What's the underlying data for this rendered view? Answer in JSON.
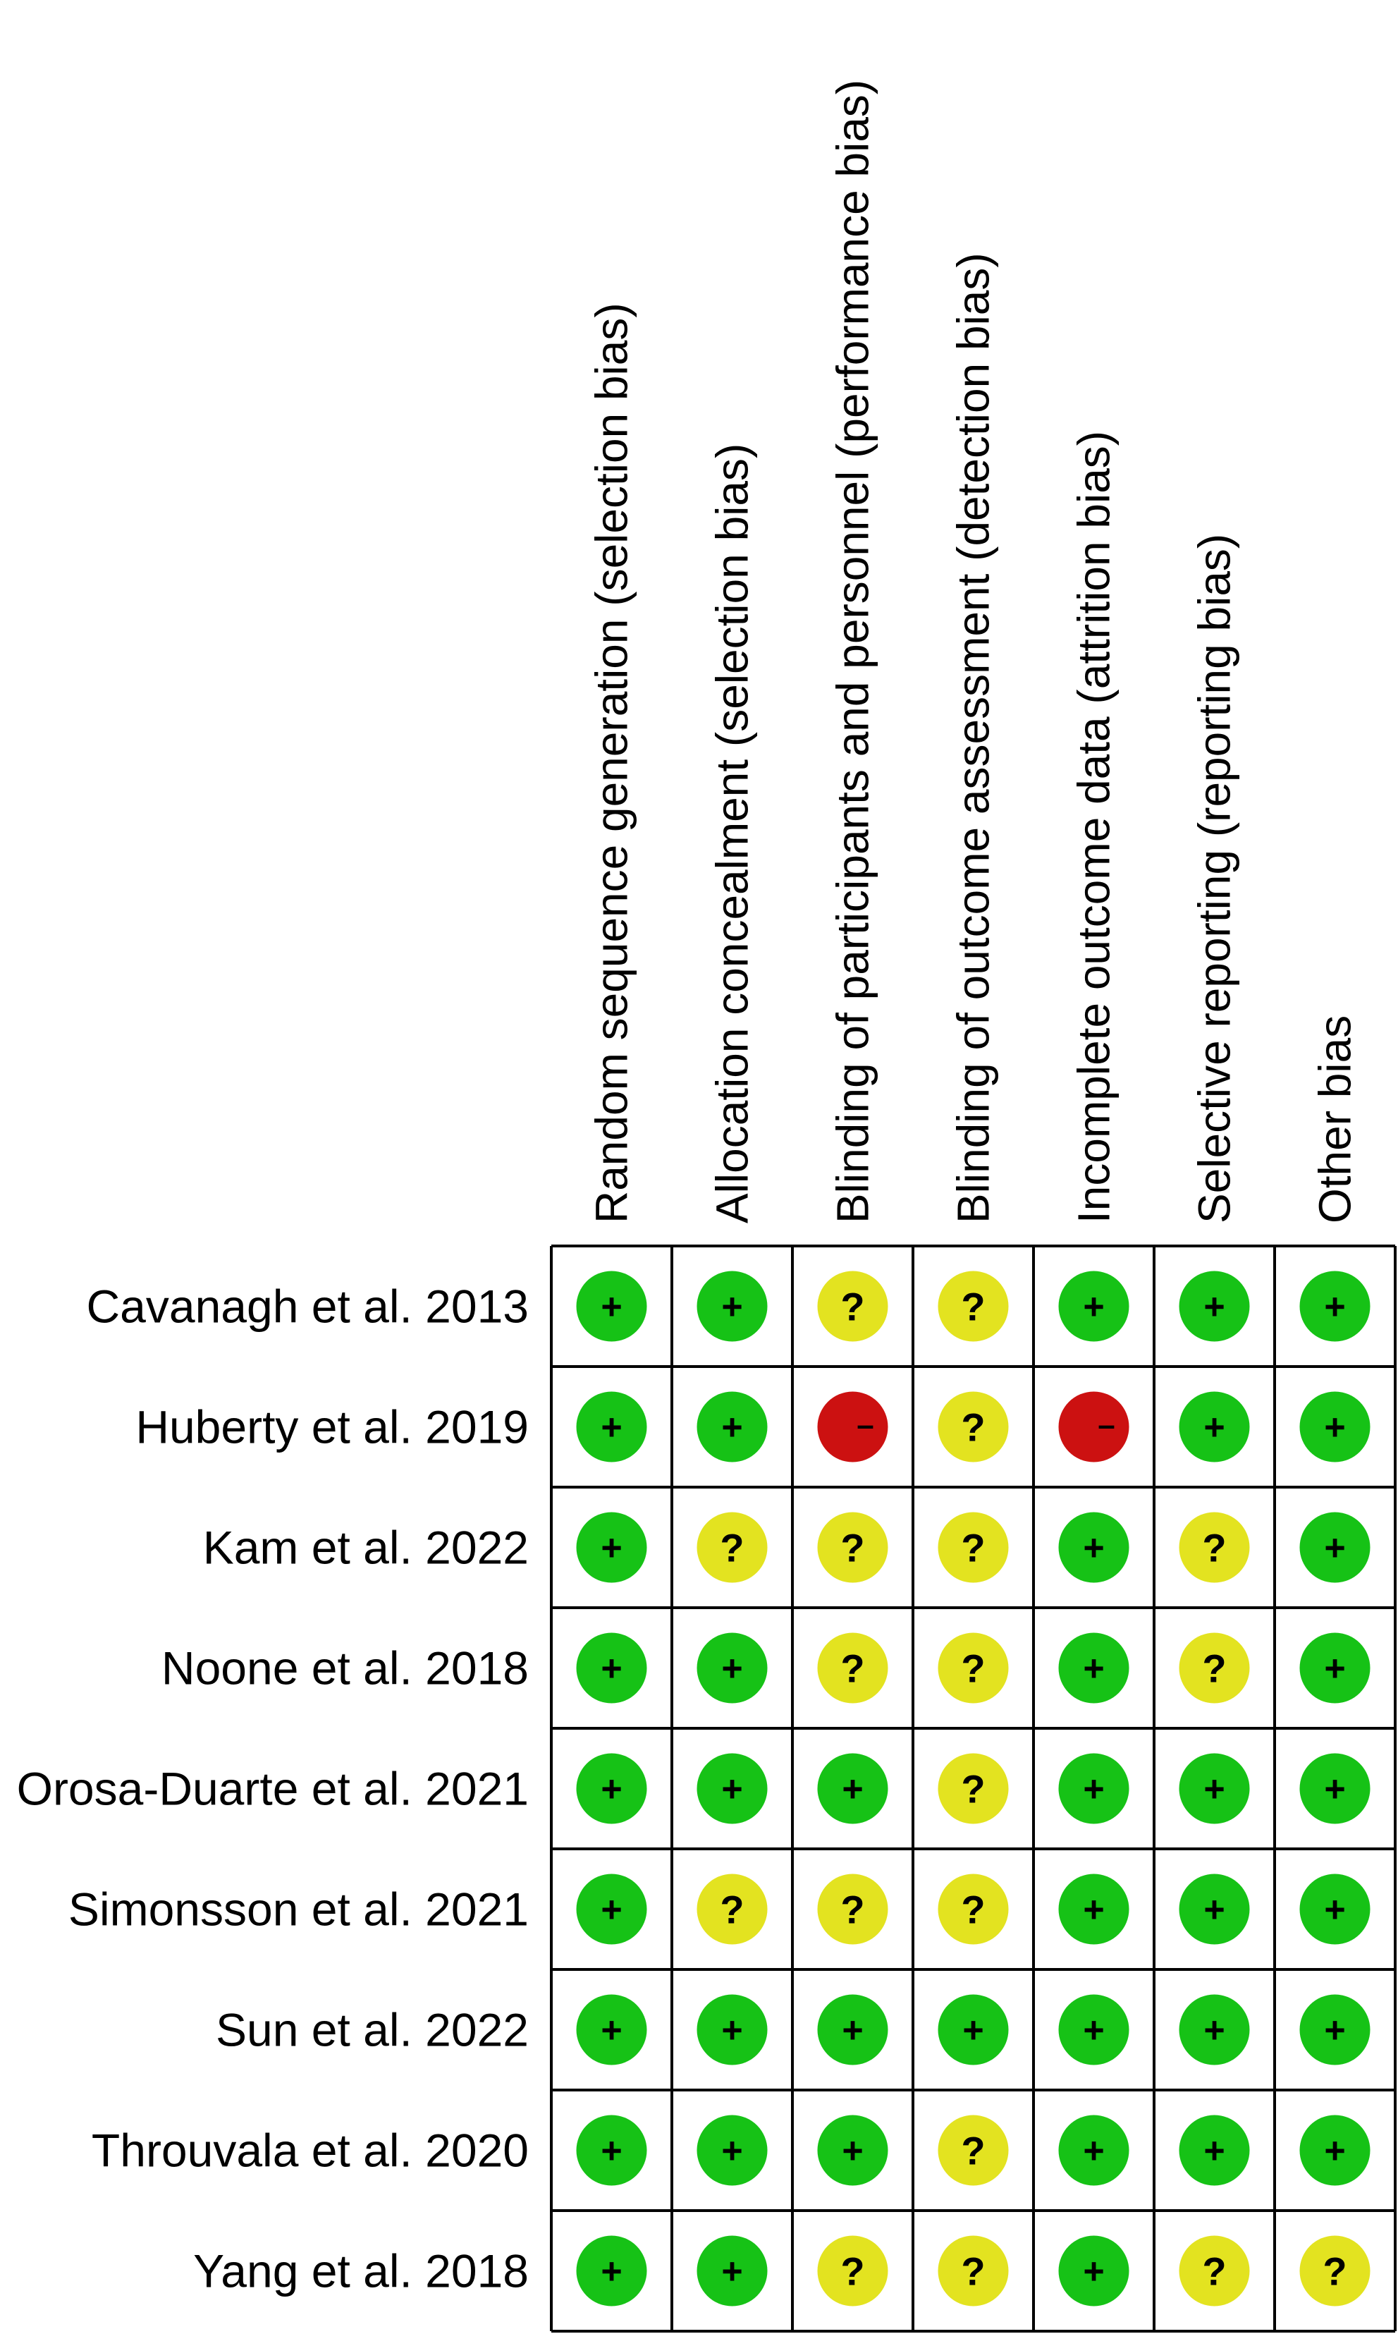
{
  "chart_data": {
    "type": "table",
    "columns": [
      "Random sequence generation (selection bias)",
      "Allocation concealment (selection bias)",
      "Blinding of participants and personnel (performance bias)",
      "Blinding of outcome assessment (detection bias)",
      "Incomplete outcome data (attrition bias)",
      "Selective reporting (reporting bias)",
      "Other bias"
    ],
    "rows": [
      {
        "study": "Cavanagh et al. 2013",
        "ratings": [
          "low",
          "low",
          "unclear",
          "unclear",
          "low",
          "low",
          "low"
        ]
      },
      {
        "study": "Huberty et al. 2019",
        "ratings": [
          "low",
          "low",
          "high",
          "unclear",
          "high",
          "low",
          "low"
        ]
      },
      {
        "study": "Kam et al. 2022",
        "ratings": [
          "low",
          "unclear",
          "unclear",
          "unclear",
          "low",
          "unclear",
          "low"
        ]
      },
      {
        "study": "Noone et al. 2018",
        "ratings": [
          "low",
          "low",
          "unclear",
          "unclear",
          "low",
          "unclear",
          "low"
        ]
      },
      {
        "study": "Orosa-Duarte et al. 2021",
        "ratings": [
          "low",
          "low",
          "low",
          "unclear",
          "low",
          "low",
          "low"
        ]
      },
      {
        "study": "Simonsson et al. 2021",
        "ratings": [
          "low",
          "unclear",
          "unclear",
          "unclear",
          "low",
          "low",
          "low"
        ]
      },
      {
        "study": "Sun et al. 2022",
        "ratings": [
          "low",
          "low",
          "low",
          "low",
          "low",
          "low",
          "low"
        ]
      },
      {
        "study": "Throuvala et al. 2020",
        "ratings": [
          "low",
          "low",
          "low",
          "unclear",
          "low",
          "low",
          "low"
        ]
      },
      {
        "study": "Yang et al. 2018",
        "ratings": [
          "low",
          "low",
          "unclear",
          "unclear",
          "low",
          "unclear",
          "unclear"
        ]
      }
    ],
    "symbols": {
      "low": "+",
      "unclear": "?",
      "high": "–"
    },
    "colors": {
      "low": "#16c216",
      "unclear": "#e3e320",
      "high": "#cc1111",
      "grid": "#000000"
    }
  }
}
